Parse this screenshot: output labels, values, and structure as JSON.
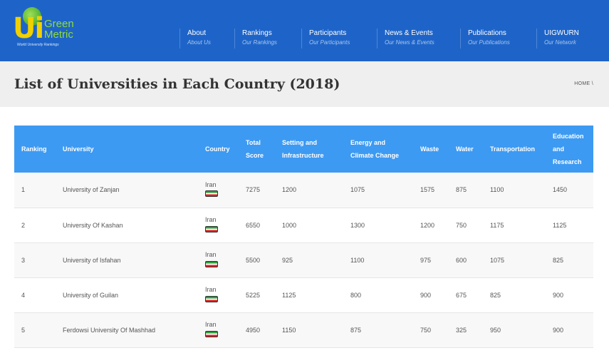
{
  "brand": {
    "logo_main": "Ui",
    "logo_word1": "Green",
    "logo_word2": "Metric",
    "logo_sub": "World University Rankings"
  },
  "nav": [
    {
      "title": "About",
      "subtitle": "About Us"
    },
    {
      "title": "Rankings",
      "subtitle": "Our Rankings"
    },
    {
      "title": "Participants",
      "subtitle": "Our Participants"
    },
    {
      "title": "News & Events",
      "subtitle": "Our News & Events"
    },
    {
      "title": "Publications",
      "subtitle": "Our Publications"
    },
    {
      "title": "UIGWURN",
      "subtitle": "Our Network"
    }
  ],
  "page": {
    "title": "List of Universities in Each Country (2018)",
    "breadcrumb": "HOME \\"
  },
  "table": {
    "headers": {
      "ranking": "Ranking",
      "university": "University",
      "country": "Country",
      "total_score": "Total Score",
      "setting": "Setting and Infrastructure",
      "energy": "Energy and Climate Change",
      "waste": "Waste",
      "water": "Water",
      "transportation": "Transportation",
      "education": "Education and Research"
    },
    "rows": [
      {
        "rank": "1",
        "university": "University of Zanjan",
        "country": "Iran",
        "total": "7275",
        "setting": "1200",
        "energy": "1075",
        "waste": "1575",
        "water": "875",
        "transport": "1100",
        "education": "1450"
      },
      {
        "rank": "2",
        "university": "University Of Kashan",
        "country": "Iran",
        "total": "6550",
        "setting": "1000",
        "energy": "1300",
        "waste": "1200",
        "water": "750",
        "transport": "1175",
        "education": "1125"
      },
      {
        "rank": "3",
        "university": "University of Isfahan",
        "country": "Iran",
        "total": "5500",
        "setting": "925",
        "energy": "1100",
        "waste": "975",
        "water": "600",
        "transport": "1075",
        "education": "825"
      },
      {
        "rank": "4",
        "university": "University of Guilan",
        "country": "Iran",
        "total": "5225",
        "setting": "1125",
        "energy": "800",
        "waste": "900",
        "water": "675",
        "transport": "825",
        "education": "900"
      },
      {
        "rank": "5",
        "university": "Ferdowsi University Of Mashhad",
        "country": "Iran",
        "total": "4950",
        "setting": "1150",
        "energy": "875",
        "waste": "750",
        "water": "325",
        "transport": "950",
        "education": "900"
      }
    ]
  },
  "colors": {
    "header_bg": "#1e64c8",
    "table_header_bg": "#3d9af2",
    "title_band_bg": "#efefef"
  }
}
